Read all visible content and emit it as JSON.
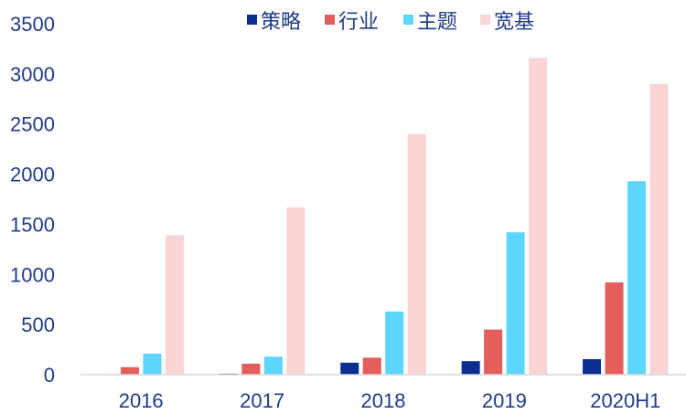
{
  "chart_data": {
    "type": "bar",
    "title": "",
    "xlabel": "",
    "ylabel": "",
    "categories": [
      "2016",
      "2017",
      "2018",
      "2019",
      "2020H1"
    ],
    "ylim": [
      0,
      3500
    ],
    "yticks": [
      0,
      500,
      1000,
      1500,
      2000,
      2500,
      3000,
      3500
    ],
    "grid": false,
    "legend_position": "top-center",
    "series": [
      {
        "name": "策略",
        "color": "#0a2f8f",
        "values": [
          5,
          10,
          120,
          135,
          155
        ]
      },
      {
        "name": "行业",
        "color": "#e35d5b",
        "values": [
          75,
          110,
          170,
          450,
          920
        ]
      },
      {
        "name": "主题",
        "color": "#5cd6ff",
        "values": [
          210,
          180,
          630,
          1420,
          1930
        ]
      },
      {
        "name": "宽基",
        "color": "#f8d4d4",
        "values": [
          1390,
          1670,
          2400,
          3160,
          2900
        ]
      }
    ]
  }
}
